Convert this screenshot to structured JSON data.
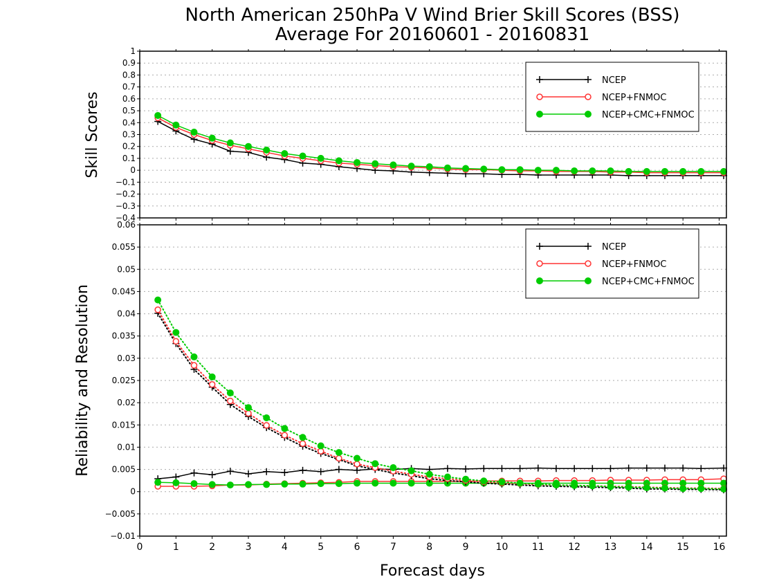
{
  "title_line1": "North American 250hPa V Wind Brier Skill Scores (BSS)",
  "title_line2": "Average For 20160601 - 20160831",
  "xlabel": "Forecast days",
  "chart_data": [
    {
      "type": "line",
      "ylabel": "Skill Scores",
      "ylim": [
        -0.4,
        1
      ],
      "yticks": [
        "1",
        "0.9",
        "0.8",
        "0.7",
        "0.6",
        "0.5",
        "0.4",
        "0.3",
        "0.2",
        "0.1",
        "0",
        "−0.1",
        "−0.2",
        "−0.3",
        "−0.4"
      ],
      "ytick_values": [
        1,
        0.9,
        0.8,
        0.7,
        0.6,
        0.5,
        0.4,
        0.3,
        0.2,
        0.1,
        0,
        -0.1,
        -0.2,
        -0.3,
        -0.4
      ],
      "xlim": [
        0,
        16.2
      ],
      "grid": true,
      "legend": "top-right",
      "x": [
        0.5,
        1,
        1.5,
        2,
        2.5,
        3,
        3.5,
        4,
        4.5,
        5,
        5.5,
        6,
        6.5,
        7,
        7.5,
        8,
        8.5,
        9,
        9.5,
        10,
        10.5,
        11,
        11.5,
        12,
        12.5,
        13,
        13.5,
        14,
        14.5,
        15,
        15.5,
        16.125
      ],
      "series": [
        {
          "name": "NCEP",
          "color": "#000000",
          "marker": "plus",
          "style": "solid",
          "values": [
            0.41,
            0.33,
            0.26,
            0.22,
            0.16,
            0.15,
            0.11,
            0.09,
            0.06,
            0.05,
            0.03,
            0.015,
            0.0,
            -0.005,
            -0.015,
            -0.02,
            -0.025,
            -0.03,
            -0.03,
            -0.035,
            -0.035,
            -0.04,
            -0.04,
            -0.04,
            -0.04,
            -0.04,
            -0.045,
            -0.045,
            -0.045,
            -0.045,
            -0.045,
            -0.045
          ]
        },
        {
          "name": "NCEP+FNMOC",
          "color": "#ff3333",
          "marker": "open-circle",
          "style": "solid",
          "values": [
            0.44,
            0.36,
            0.3,
            0.25,
            0.21,
            0.18,
            0.15,
            0.12,
            0.1,
            0.08,
            0.06,
            0.05,
            0.04,
            0.03,
            0.025,
            0.02,
            0.01,
            0.005,
            0.005,
            0.0,
            -0.005,
            -0.005,
            -0.01,
            -0.01,
            -0.01,
            -0.015,
            -0.015,
            -0.02,
            -0.02,
            -0.02,
            -0.02,
            -0.02
          ]
        },
        {
          "name": "NCEP+CMC+FNMOC",
          "color": "#00cc00",
          "marker": "filled-circle",
          "style": "solid",
          "values": [
            0.46,
            0.38,
            0.32,
            0.27,
            0.23,
            0.2,
            0.17,
            0.14,
            0.12,
            0.1,
            0.08,
            0.065,
            0.055,
            0.045,
            0.035,
            0.03,
            0.02,
            0.015,
            0.01,
            0.005,
            0.005,
            0.0,
            0.0,
            -0.005,
            -0.005,
            -0.005,
            -0.01,
            -0.01,
            -0.01,
            -0.01,
            -0.01,
            -0.01
          ]
        }
      ]
    },
    {
      "type": "line",
      "ylabel": "Reliability and Resolution",
      "ylim": [
        -0.01,
        0.06
      ],
      "yticks": [
        "0.06",
        "0.055",
        "0.05",
        "0.045",
        "0.04",
        "0.035",
        "0.03",
        "0.025",
        "0.02",
        "0.015",
        "0.01",
        "0.005",
        "0",
        "−0.005",
        "−0.01"
      ],
      "ytick_values": [
        0.06,
        0.055,
        0.05,
        0.045,
        0.04,
        0.035,
        0.03,
        0.025,
        0.02,
        0.015,
        0.01,
        0.005,
        0,
        -0.005,
        -0.01
      ],
      "xlim": [
        0,
        16.2
      ],
      "xticks": [
        "0",
        "1",
        "2",
        "3",
        "4",
        "5",
        "6",
        "7",
        "8",
        "9",
        "10",
        "11",
        "12",
        "13",
        "14",
        "15",
        "16"
      ],
      "xtick_values": [
        0,
        1,
        2,
        3,
        4,
        5,
        6,
        7,
        8,
        9,
        10,
        11,
        12,
        13,
        14,
        15,
        16
      ],
      "grid": true,
      "legend": "top-right",
      "x": [
        0.5,
        1,
        1.5,
        2,
        2.5,
        3,
        3.5,
        4,
        4.5,
        5,
        5.5,
        6,
        6.5,
        7,
        7.5,
        8,
        8.5,
        9,
        9.5,
        10,
        10.5,
        11,
        11.5,
        12,
        12.5,
        13,
        13.5,
        14,
        14.5,
        15,
        15.5,
        16.125
      ],
      "series": [
        {
          "name": "NCEP",
          "color": "#000000",
          "marker": "plus",
          "style": "solid",
          "legend": true,
          "values": [
            0.0029,
            0.0033,
            0.0042,
            0.0038,
            0.0046,
            0.004,
            0.0045,
            0.0043,
            0.0048,
            0.0045,
            0.005,
            0.0048,
            0.0051,
            0.005,
            0.0052,
            0.005,
            0.0052,
            0.0051,
            0.0052,
            0.0052,
            0.0052,
            0.0053,
            0.0052,
            0.0052,
            0.0052,
            0.0052,
            0.0053,
            0.0053,
            0.0053,
            0.0053,
            0.0052,
            0.0053
          ]
        },
        {
          "name": "NCEP+FNMOC",
          "color": "#ff3333",
          "marker": "open-circle",
          "style": "solid",
          "legend": true,
          "values": [
            0.0012,
            0.0012,
            0.0012,
            0.0013,
            0.0015,
            0.0015,
            0.0017,
            0.0018,
            0.0019,
            0.002,
            0.0021,
            0.0023,
            0.0023,
            0.0023,
            0.0023,
            0.0023,
            0.0023,
            0.0023,
            0.0024,
            0.0024,
            0.0024,
            0.0024,
            0.0025,
            0.0025,
            0.0025,
            0.0026,
            0.0026,
            0.0026,
            0.0027,
            0.0027,
            0.0027,
            0.0029
          ]
        },
        {
          "name": "NCEP+CMC+FNMOC",
          "color": "#00cc00",
          "marker": "filled-circle",
          "style": "solid",
          "legend": true,
          "values": [
            0.0021,
            0.002,
            0.0018,
            0.0016,
            0.0015,
            0.0016,
            0.0016,
            0.0017,
            0.0017,
            0.0018,
            0.0018,
            0.0019,
            0.0019,
            0.0019,
            0.0019,
            0.0019,
            0.0019,
            0.0019,
            0.0019,
            0.0019,
            0.0019,
            0.0019,
            0.0019,
            0.0019,
            0.0019,
            0.0019,
            0.0019,
            0.0019,
            0.0019,
            0.0019,
            0.0019,
            0.0019
          ]
        },
        {
          "name": "NCEP",
          "color": "#000000",
          "marker": "plus",
          "style": "dotted",
          "legend": false,
          "values": [
            0.0401,
            0.0333,
            0.0275,
            0.0235,
            0.0196,
            0.0169,
            0.0144,
            0.0122,
            0.0102,
            0.0086,
            0.0072,
            0.0058,
            0.005,
            0.0042,
            0.0036,
            0.0029,
            0.0025,
            0.0022,
            0.0019,
            0.0017,
            0.0015,
            0.0013,
            0.0012,
            0.0011,
            0.001,
            0.0009,
            0.0008,
            0.0006,
            0.0006,
            0.0005,
            0.0005,
            0.0004
          ]
        },
        {
          "name": "NCEP+FNMOC",
          "color": "#ff3333",
          "marker": "open-circle",
          "style": "dotted",
          "legend": false,
          "values": [
            0.0409,
            0.0338,
            0.0284,
            0.0241,
            0.0204,
            0.0176,
            0.0149,
            0.0127,
            0.0108,
            0.0091,
            0.0075,
            0.0062,
            0.0054,
            0.0046,
            0.0039,
            0.0033,
            0.0029,
            0.0025,
            0.0022,
            0.002,
            0.0018,
            0.0016,
            0.0015,
            0.0014,
            0.0013,
            0.0012,
            0.0011,
            0.001,
            0.0009,
            0.0008,
            0.0008,
            0.0007
          ]
        },
        {
          "name": "NCEP+CMC+FNMOC",
          "color": "#00cc00",
          "marker": "filled-circle",
          "style": "dotted",
          "legend": false,
          "values": [
            0.0431,
            0.0358,
            0.0303,
            0.0258,
            0.0222,
            0.0189,
            0.0166,
            0.0142,
            0.0122,
            0.0103,
            0.0088,
            0.0075,
            0.0063,
            0.0054,
            0.0047,
            0.0039,
            0.0033,
            0.0028,
            0.0024,
            0.0022,
            0.0019,
            0.0017,
            0.0015,
            0.0014,
            0.0013,
            0.0011,
            0.001,
            0.0009,
            0.0008,
            0.0007,
            0.0007,
            0.0006
          ]
        }
      ]
    }
  ]
}
